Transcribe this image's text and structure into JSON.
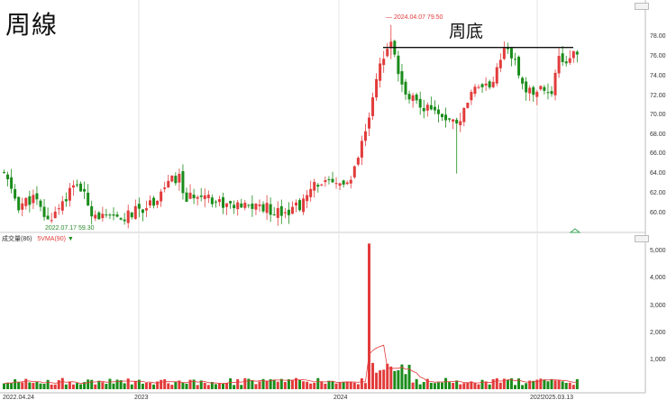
{
  "title": "周線",
  "pattern_label": "周底",
  "annotations": {
    "high": "2024.04.07  79.50",
    "low": "2022.07.17  59.30",
    "low_arrow": "▼",
    "high_dash": "—"
  },
  "volume_panel": {
    "label": "成交量(86)",
    "ma_label": "5VMA(90)"
  },
  "price_axis": [
    "78.00",
    "76.00",
    "74.00",
    "72.00",
    "70.00",
    "68.00",
    "66.00",
    "64.00",
    "62.00",
    "60.00"
  ],
  "volume_axis": [
    "5,000",
    "4,000",
    "3,000",
    "2,000",
    "1,000"
  ],
  "x_labels": [
    "2022.04.24",
    "2023",
    "2024",
    "2025",
    "2025.03.13"
  ],
  "colors": {
    "up": "#e23b3b",
    "down": "#1a8c1a",
    "neckline": "#111111",
    "grid": "#e4e4e4"
  },
  "chart_data": {
    "type": "candlestick",
    "title": "周線",
    "price_range": [
      58.5,
      80.5
    ],
    "volume_range": [
      0,
      5500
    ],
    "neckline": 77.2,
    "price_path": [
      {
        "i": 0,
        "p": 64.2
      },
      {
        "i": 4,
        "p": 61.0
      },
      {
        "i": 8,
        "p": 61.8
      },
      {
        "i": 12,
        "p": 59.4
      },
      {
        "i": 16,
        "p": 61.5
      },
      {
        "i": 20,
        "p": 63.3
      },
      {
        "i": 24,
        "p": 60.5
      },
      {
        "i": 28,
        "p": 59.6
      },
      {
        "i": 32,
        "p": 59.6
      },
      {
        "i": 36,
        "p": 60.4
      },
      {
        "i": 41,
        "p": 61.5
      },
      {
        "i": 45,
        "p": 63.4
      },
      {
        "i": 48,
        "p": 63.8
      },
      {
        "i": 50,
        "p": 61.5
      },
      {
        "i": 54,
        "p": 62.5
      },
      {
        "i": 58,
        "p": 61.5
      },
      {
        "i": 64,
        "p": 60.8
      },
      {
        "i": 70,
        "p": 61.0
      },
      {
        "i": 74,
        "p": 60.5
      },
      {
        "i": 78,
        "p": 60.6
      },
      {
        "i": 82,
        "p": 61.3
      },
      {
        "i": 86,
        "p": 63.5
      },
      {
        "i": 90,
        "p": 63.0
      },
      {
        "i": 93,
        "p": 63.4
      },
      {
        "i": 95,
        "p": 63.3
      },
      {
        "i": 100,
        "p": 69.8
      },
      {
        "i": 103,
        "p": 75.5
      },
      {
        "i": 106,
        "p": 77.5
      },
      {
        "i": 109,
        "p": 73.0
      },
      {
        "i": 113,
        "p": 71.5
      },
      {
        "i": 119,
        "p": 70.8
      },
      {
        "i": 123,
        "p": 69.8
      },
      {
        "i": 125,
        "p": 70.0
      },
      {
        "i": 129,
        "p": 72.8
      },
      {
        "i": 133,
        "p": 73.2
      },
      {
        "i": 136,
        "p": 75.5
      },
      {
        "i": 138,
        "p": 77.6
      },
      {
        "i": 141,
        "p": 74.5
      },
      {
        "i": 144,
        "p": 72.5
      },
      {
        "i": 148,
        "p": 72.8
      },
      {
        "i": 150,
        "p": 72.6
      },
      {
        "i": 152,
        "p": 76.0
      },
      {
        "i": 155,
        "p": 75.8
      },
      {
        "i": 157,
        "p": 77.0
      }
    ],
    "volume_spike": {
      "i": 100,
      "value": 5300
    },
    "volume_ma_peak": {
      "i": 104,
      "value": 1600
    }
  }
}
